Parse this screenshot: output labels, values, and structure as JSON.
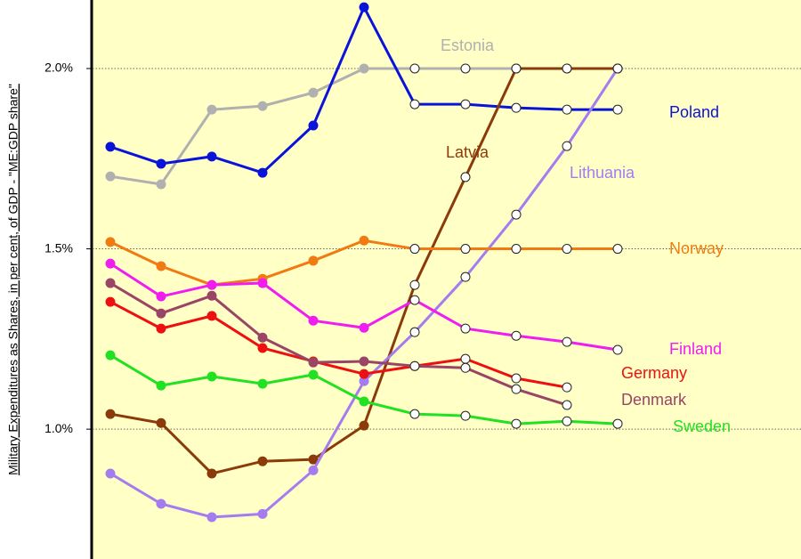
{
  "chart_data": {
    "type": "line",
    "ylabel": "Military Expenditures  as Shares, in per cent, of GDP - \"ME:GDP share\"",
    "categories": [
      null,
      null,
      null,
      null,
      null,
      null,
      null,
      null,
      null,
      null,
      null
    ],
    "ylim": [
      0.64,
      2.19
    ],
    "yticks": [
      {
        "value": 1.0,
        "label": "1.0%"
      },
      {
        "value": 1.5,
        "label": "1.5%"
      },
      {
        "value": 2.0,
        "label": "2.0%"
      }
    ],
    "grid": true,
    "hollow_from_index": 6,
    "series": [
      {
        "name": "Estonia",
        "color": "#b0b0b0",
        "values": [
          1.701,
          1.679,
          1.886,
          1.896,
          1.933,
          2.0,
          2.0,
          2.0,
          2.0,
          2.0,
          2.0
        ]
      },
      {
        "name": "Poland",
        "color": "#0a14d8",
        "values": [
          1.783,
          1.736,
          1.756,
          1.711,
          1.842,
          2.17,
          1.901,
          1.901,
          1.891,
          1.886,
          1.886
        ]
      },
      {
        "name": "Latvia",
        "color": "#8b3a0a",
        "values": [
          1.042,
          1.017,
          0.877,
          0.911,
          0.916,
          1.01,
          1.4,
          1.699,
          2.0,
          2.0,
          2.0
        ]
      },
      {
        "name": "Lithuania",
        "color": "#a47cf0",
        "values": [
          0.877,
          0.793,
          0.756,
          0.765,
          0.886,
          1.133,
          1.269,
          1.422,
          1.595,
          1.785,
          2.0
        ]
      },
      {
        "name": "Norway",
        "color": "#f27a12",
        "values": [
          1.519,
          1.452,
          1.4,
          1.417,
          1.467,
          1.523,
          1.5,
          1.5,
          1.5,
          1.5,
          1.5
        ]
      },
      {
        "name": "Finland",
        "color": "#f01cf0",
        "values": [
          1.459,
          1.368,
          1.4,
          1.405,
          1.301,
          1.281,
          1.358,
          1.279,
          1.259,
          1.242,
          1.22
        ]
      },
      {
        "name": "Germany",
        "color": "#ee1010",
        "values": [
          1.353,
          1.279,
          1.314,
          1.225,
          1.188,
          1.153,
          1.175,
          1.195,
          1.141,
          1.116,
          null
        ]
      },
      {
        "name": "Denmark",
        "color": "#9a4466",
        "values": [
          1.405,
          1.321,
          1.37,
          1.254,
          1.185,
          1.188,
          1.175,
          1.17,
          1.111,
          1.067,
          null
        ]
      },
      {
        "name": "Sweden",
        "color": "#22e022",
        "values": [
          1.205,
          1.121,
          1.146,
          1.126,
          1.151,
          1.077,
          1.042,
          1.037,
          1.015,
          1.022,
          1.015
        ]
      }
    ]
  }
}
